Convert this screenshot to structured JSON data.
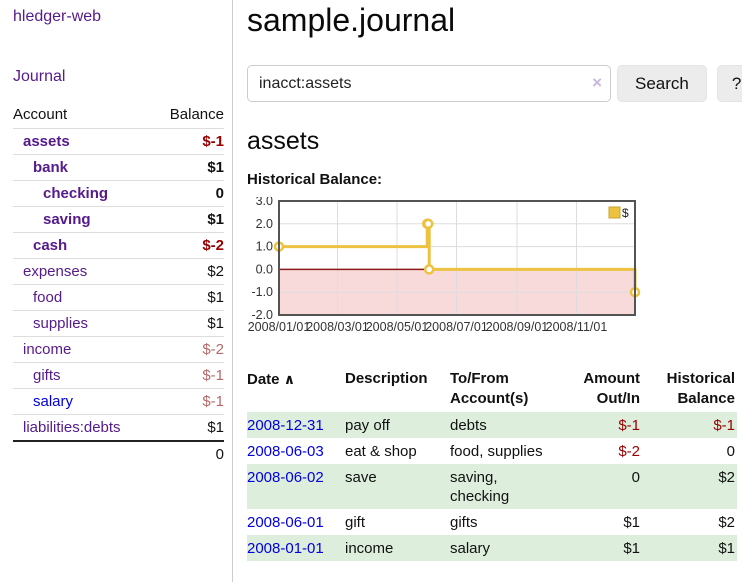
{
  "app": {
    "title": "hledger-web"
  },
  "sidebar": {
    "journal_link": "Journal",
    "accounts": {
      "header_account": "Account",
      "header_balance": "Balance",
      "rows": [
        {
          "name": "assets",
          "balance": "$-1",
          "level": 1,
          "bold": true,
          "unvisited": false
        },
        {
          "name": "bank",
          "balance": "$1",
          "level": 2,
          "bold": true,
          "unvisited": false
        },
        {
          "name": "checking",
          "balance": "0",
          "level": 3,
          "bold": true,
          "unvisited": false
        },
        {
          "name": "saving",
          "balance": "$1",
          "level": 3,
          "bold": true,
          "unvisited": false
        },
        {
          "name": "cash",
          "balance": "$-2",
          "level": 2,
          "bold": true,
          "unvisited": false
        },
        {
          "name": "expenses",
          "balance": "$2",
          "level": 1,
          "bold": false,
          "unvisited": false
        },
        {
          "name": "food",
          "balance": "$1",
          "level": 2,
          "bold": false,
          "unvisited": false
        },
        {
          "name": "supplies",
          "balance": "$1",
          "level": 2,
          "bold": false,
          "unvisited": false
        },
        {
          "name": "income",
          "balance": "$-2",
          "level": 1,
          "bold": false,
          "unvisited": false
        },
        {
          "name": "gifts",
          "balance": "$-1",
          "level": 2,
          "bold": false,
          "unvisited": false
        },
        {
          "name": "salary",
          "balance": "$-1",
          "level": 2,
          "bold": false,
          "unvisited": true
        },
        {
          "name": "liabilities:debts",
          "balance": "$1",
          "level": 1,
          "bold": false,
          "unvisited": false
        }
      ],
      "total": "0"
    }
  },
  "main": {
    "title": "sample.journal",
    "search": {
      "value": "inacct:assets",
      "clear_icon": "×",
      "search_button": "Search",
      "help_button": "?"
    },
    "account_heading": "assets",
    "chart_title": "Historical Balance:"
  },
  "chart_data": {
    "type": "line",
    "step": true,
    "title": "Historical Balance",
    "series": [
      {
        "name": "$",
        "color": "#edc240",
        "points": [
          [
            "2008/01/01",
            1
          ],
          [
            "2008/06/01",
            2
          ],
          [
            "2008/06/02",
            2
          ],
          [
            "2008/06/03",
            0
          ],
          [
            "2008/12/31",
            -1
          ]
        ]
      }
    ],
    "x_range": [
      "2008/01/01",
      "2008/12/31"
    ],
    "x_ticks": [
      "2008/01/01",
      "2008/03/01",
      "2008/05/01",
      "2008/07/01",
      "2008/09/01",
      "2008/11/01"
    ],
    "y_ticks": [
      3.0,
      2.0,
      1.0,
      0.0,
      -1.0,
      -2.0
    ],
    "ylim": [
      -2,
      3
    ],
    "legend": "$",
    "legend_position": "top-right",
    "grid": true,
    "colors": {
      "line": "#edc240",
      "marker_fill": "#ffffff",
      "negative_region": "#f9dada",
      "zero_line": "#8b1a1a",
      "plot_border": "#545454",
      "gridline": "#dddddd",
      "tick_label": "#333333",
      "legend_swatch_border": "#c9a42e"
    }
  },
  "register": {
    "headers": {
      "date": "Date",
      "sort_icon": "∧",
      "description": "Description",
      "accounts": "To/From Account(s)",
      "amount": "Amount Out/In",
      "balance": "Historical Balance"
    },
    "rows": [
      {
        "date": "2008-12-31",
        "description": "pay off",
        "accounts": "debts",
        "amount": "$-1",
        "balance": "$-1"
      },
      {
        "date": "2008-06-03",
        "description": "eat & shop",
        "accounts": "food, supplies",
        "amount": "$-2",
        "balance": "0"
      },
      {
        "date": "2008-06-02",
        "description": "save",
        "accounts": "saving, checking",
        "amount": "0",
        "balance": "$2"
      },
      {
        "date": "2008-06-01",
        "description": "gift",
        "accounts": "gifts",
        "amount": "$1",
        "balance": "$2"
      },
      {
        "date": "2008-01-01",
        "description": "income",
        "accounts": "salary",
        "amount": "$1",
        "balance": "$1"
      }
    ]
  }
}
